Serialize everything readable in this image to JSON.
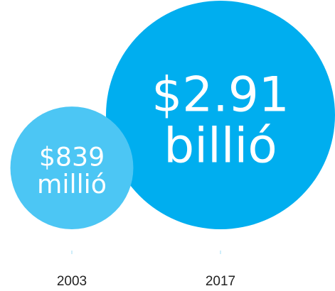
{
  "chart_data": {
    "type": "bubble",
    "title": "",
    "xlabel": "",
    "ylabel": "",
    "unit": "USD",
    "categories": [
      "2003",
      "2017"
    ],
    "values": [
      839000000,
      2910000000
    ],
    "bubbles": [
      {
        "category": "2003",
        "value": 839000000,
        "label_line1": "$839",
        "label_line2": "millió",
        "color": "#4cc6f4"
      },
      {
        "category": "2017",
        "value": 2910000000,
        "label_line1": "$2.91",
        "label_line2": "billió",
        "color": "#00aeef"
      }
    ],
    "legend": "none",
    "grid": false
  }
}
